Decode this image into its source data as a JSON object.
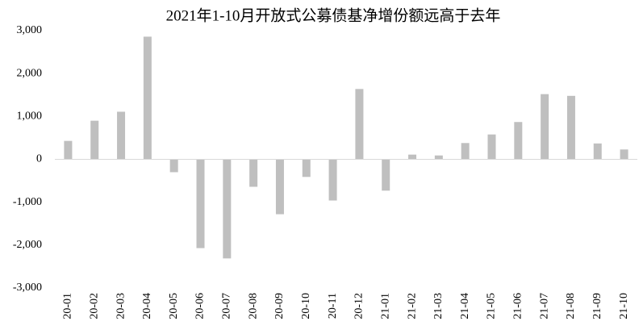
{
  "chart_data": {
    "type": "bar",
    "title": "2021年1-10月开放式公募债基净增份额远高于去年",
    "categories": [
      "20-01",
      "20-02",
      "20-03",
      "20-04",
      "20-05",
      "20-06",
      "20-07",
      "20-08",
      "20-09",
      "20-10",
      "20-11",
      "20-12",
      "21-01",
      "21-02",
      "21-03",
      "21-04",
      "21-05",
      "21-06",
      "21-07",
      "21-08",
      "21-09",
      "21-10"
    ],
    "values": [
      430,
      900,
      1110,
      2860,
      -300,
      -2070,
      -2310,
      -640,
      -1280,
      -410,
      -960,
      1640,
      -730,
      110,
      90,
      380,
      580,
      870,
      1520,
      1480,
      370,
      230
    ],
    "color": "#bfbfbf",
    "ylim": [
      -3000,
      3000
    ],
    "yticks": [
      {
        "value": -3000,
        "label": "-3,000"
      },
      {
        "value": -2000,
        "label": "-2,000"
      },
      {
        "value": -1000,
        "label": "-1,000"
      },
      0,
      {
        "value": 1000,
        "label": "1,000"
      },
      {
        "value": 2000,
        "label": "2,000"
      },
      {
        "value": 3000,
        "label": "3,000"
      }
    ],
    "grid": false
  }
}
